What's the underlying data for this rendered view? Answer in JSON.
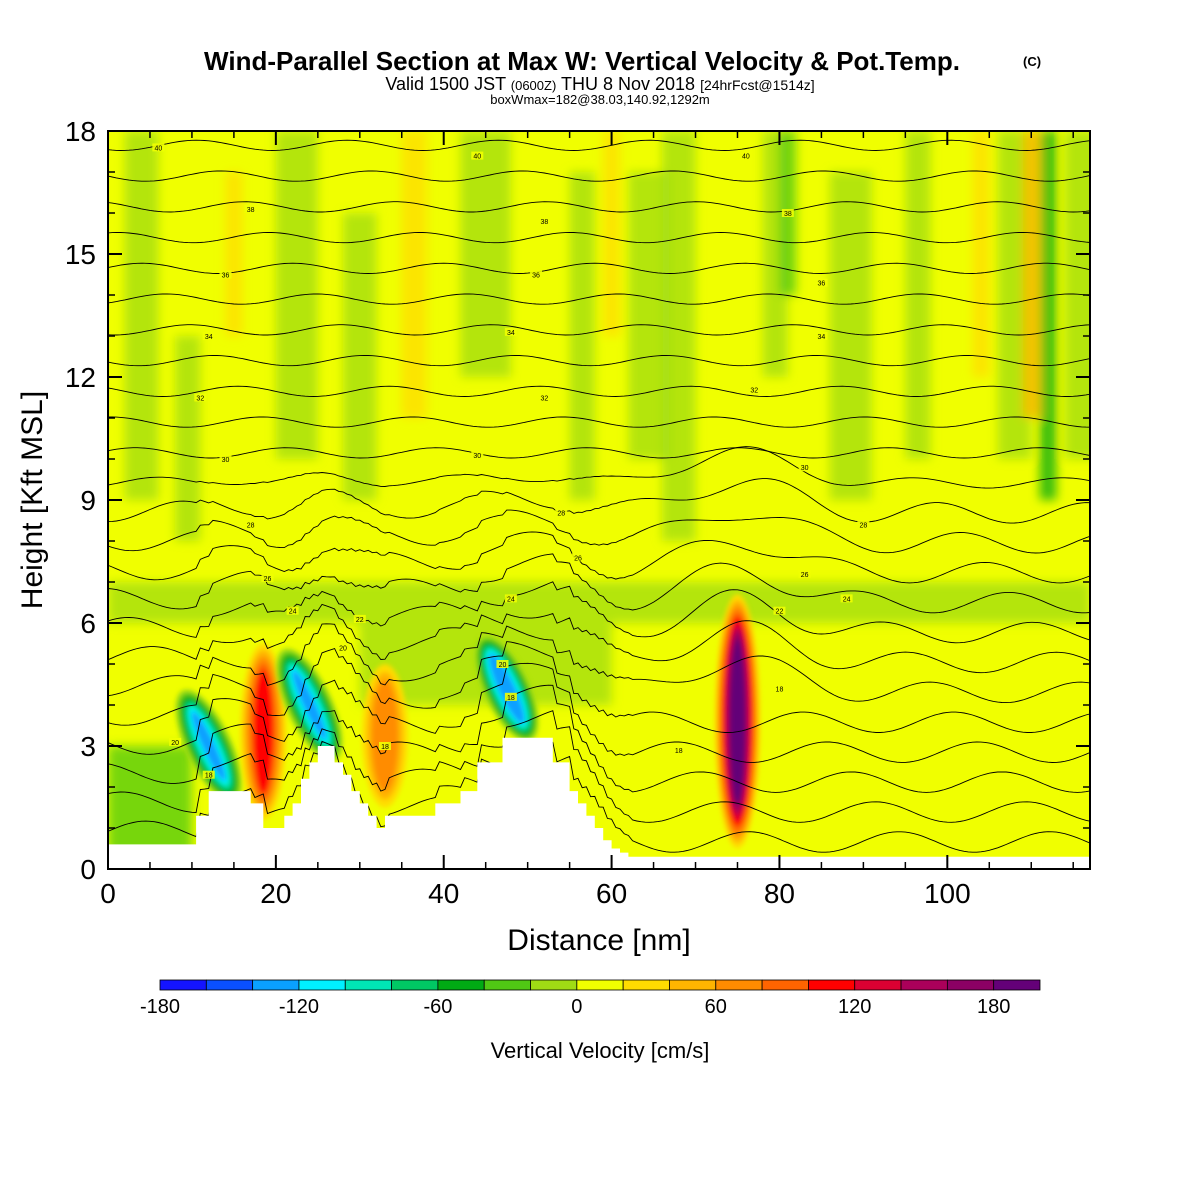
{
  "title": {
    "main": "Wind-Parallel Section at Max W: Vertical Velocity & Pot.Temp.",
    "copyright": "(C)",
    "valid_prefix": "Valid 1500 JST",
    "valid_utc": "(0600Z)",
    "valid_date": "THU 8 Nov 2018",
    "forecast": "[24hrFcst@1514z]",
    "box_info": "boxWmax=182@38.03,140.92,1292m"
  },
  "chart_data": {
    "type": "heatmap",
    "title": "Wind-Parallel Section at Max W: Vertical Velocity & Pot.Temp.",
    "xlabel": "Distance [nm]",
    "ylabel": "Height [Kft MSL]",
    "xlim": [
      0,
      117
    ],
    "ylim": [
      0,
      18
    ],
    "x_ticks": [
      0,
      20,
      40,
      60,
      80,
      100
    ],
    "y_ticks": [
      0,
      3,
      6,
      9,
      12,
      15,
      18
    ],
    "x_tick_labels": [
      "0",
      "20",
      "40",
      "60",
      "80",
      "100"
    ],
    "y_tick_labels": [
      "0",
      "3",
      "6",
      "9",
      "12",
      "15",
      "18"
    ],
    "colorbar": {
      "title": "Vertical Velocity [cm/s]",
      "levels": [
        -180,
        -160,
        -140,
        -120,
        -100,
        -80,
        -60,
        -40,
        -20,
        0,
        20,
        40,
        60,
        80,
        100,
        120,
        140,
        160,
        180,
        200
      ],
      "colors": [
        "#1414ff",
        "#0a50ff",
        "#0aa0ff",
        "#00f0ff",
        "#00e6b4",
        "#00c864",
        "#00aa14",
        "#50c814",
        "#a0dc14",
        "#f0ff00",
        "#ffdc00",
        "#ffb400",
        "#ff8c00",
        "#ff6400",
        "#ff0000",
        "#dc0032",
        "#aa005a",
        "#8c0064",
        "#640078"
      ],
      "tick_values": [
        -180,
        -120,
        -60,
        0,
        60,
        120,
        180
      ],
      "tick_labels": [
        "-180",
        "-120",
        "-60",
        "0",
        "60",
        "120",
        "180"
      ]
    },
    "vertical_velocity_features": [
      {
        "x": 12,
        "z_bottom": 1.5,
        "z_top": 4.5,
        "w": -130
      },
      {
        "x": 18.5,
        "z_bottom": 1.2,
        "z_top": 5.5,
        "w": 110
      },
      {
        "x": 24,
        "z_bottom": 2.5,
        "z_top": 5.5,
        "w": -130
      },
      {
        "x": 33,
        "z_bottom": 1.5,
        "z_top": 5.0,
        "w": 70
      },
      {
        "x": 47.5,
        "z_bottom": 3.0,
        "z_top": 5.8,
        "w": -140
      },
      {
        "x": 75,
        "z_bottom": 0.5,
        "z_top": 6.7,
        "w": 182
      }
    ],
    "potential_temperature_contours": {
      "units": "C",
      "labeled_values": [
        "40",
        "38",
        "36",
        "34",
        "32",
        "30",
        "28",
        "26",
        "24",
        "22",
        "20",
        "18"
      ]
    },
    "terrain": {
      "x": [
        0,
        10.5,
        10.5,
        12,
        12,
        17,
        17,
        18.5,
        18.5,
        21,
        21,
        22,
        22,
        23,
        23,
        24,
        24,
        25,
        25,
        27,
        27,
        28,
        28,
        29,
        29,
        30,
        30,
        31,
        31,
        32,
        32,
        33,
        33,
        35,
        35,
        39,
        39,
        42,
        42,
        44,
        44,
        47,
        47,
        48,
        48,
        53,
        53,
        55,
        55,
        56,
        56,
        57,
        57,
        58,
        58,
        59,
        59,
        60,
        60,
        61,
        61,
        62,
        62,
        63,
        63,
        65,
        65,
        72,
        72,
        117
      ],
      "z": [
        0.6,
        0.6,
        1.3,
        1.3,
        1.9,
        1.9,
        1.6,
        1.6,
        1.0,
        1.0,
        1.3,
        1.3,
        1.6,
        1.6,
        2.2,
        2.2,
        2.6,
        2.6,
        3.0,
        3.0,
        2.6,
        2.6,
        2.3,
        2.3,
        1.9,
        1.9,
        1.6,
        1.6,
        1.3,
        1.3,
        1.0,
        1.0,
        1.3,
        1.3,
        1.3,
        1.3,
        1.6,
        1.6,
        1.9,
        1.9,
        2.6,
        2.6,
        3.2,
        3.2,
        3.2,
        3.2,
        2.6,
        2.6,
        1.9,
        1.9,
        1.6,
        1.6,
        1.3,
        1.3,
        1.0,
        1.0,
        0.7,
        0.7,
        0.5,
        0.5,
        0.4,
        0.4,
        0.3,
        0.3,
        0.3,
        0.3,
        0.3,
        0.3,
        0.3,
        0.3
      ]
    }
  }
}
